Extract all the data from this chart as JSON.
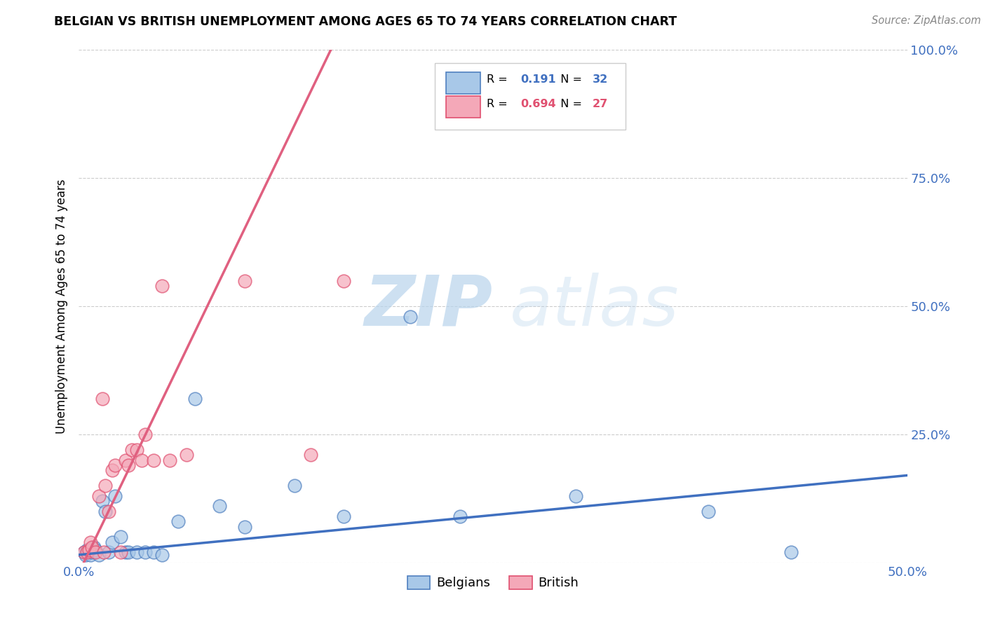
{
  "title": "BELGIAN VS BRITISH UNEMPLOYMENT AMONG AGES 65 TO 74 YEARS CORRELATION CHART",
  "source": "Source: ZipAtlas.com",
  "ylabel": "Unemployment Among Ages 65 to 74 years",
  "xlim": [
    0.0,
    0.5
  ],
  "ylim": [
    0.0,
    1.0
  ],
  "xticks": [
    0.0,
    0.1,
    0.2,
    0.3,
    0.4,
    0.5
  ],
  "xticklabels": [
    "0.0%",
    "",
    "",
    "",
    "",
    "50.0%"
  ],
  "yticks": [
    0.0,
    0.25,
    0.5,
    0.75,
    1.0
  ],
  "yticklabels": [
    "",
    "25.0%",
    "50.0%",
    "75.0%",
    "100.0%"
  ],
  "belgian_color": "#a8c8e8",
  "british_color": "#f4a8b8",
  "belgian_edge_color": "#5080c0",
  "british_edge_color": "#e05070",
  "belgian_line_color": "#4070c0",
  "british_line_color": "#e06080",
  "belgian_R": "0.191",
  "belgian_N": "32",
  "british_R": "0.694",
  "british_N": "27",
  "belgians_x": [
    0.003,
    0.004,
    0.005,
    0.006,
    0.007,
    0.008,
    0.009,
    0.01,
    0.012,
    0.014,
    0.016,
    0.018,
    0.02,
    0.022,
    0.025,
    0.028,
    0.03,
    0.035,
    0.04,
    0.045,
    0.05,
    0.06,
    0.07,
    0.085,
    0.1,
    0.13,
    0.16,
    0.2,
    0.23,
    0.3,
    0.38,
    0.43
  ],
  "belgians_y": [
    0.02,
    0.015,
    0.025,
    0.02,
    0.015,
    0.02,
    0.03,
    0.025,
    0.015,
    0.12,
    0.1,
    0.02,
    0.04,
    0.13,
    0.05,
    0.02,
    0.02,
    0.02,
    0.02,
    0.02,
    0.015,
    0.08,
    0.32,
    0.11,
    0.07,
    0.15,
    0.09,
    0.48,
    0.09,
    0.13,
    0.1,
    0.02
  ],
  "british_x": [
    0.003,
    0.005,
    0.006,
    0.007,
    0.008,
    0.01,
    0.012,
    0.014,
    0.015,
    0.016,
    0.018,
    0.02,
    0.022,
    0.025,
    0.028,
    0.03,
    0.032,
    0.035,
    0.038,
    0.04,
    0.045,
    0.05,
    0.055,
    0.065,
    0.1,
    0.14,
    0.16
  ],
  "british_y": [
    0.02,
    0.02,
    0.025,
    0.04,
    0.03,
    0.02,
    0.13,
    0.32,
    0.02,
    0.15,
    0.1,
    0.18,
    0.19,
    0.02,
    0.2,
    0.19,
    0.22,
    0.22,
    0.2,
    0.25,
    0.2,
    0.54,
    0.2,
    0.21,
    0.55,
    0.21,
    0.55
  ],
  "belgian_trendline": [
    0.0,
    0.5,
    0.015,
    0.17
  ],
  "british_trendline": [
    0.0,
    0.155,
    -0.02,
    1.02
  ]
}
